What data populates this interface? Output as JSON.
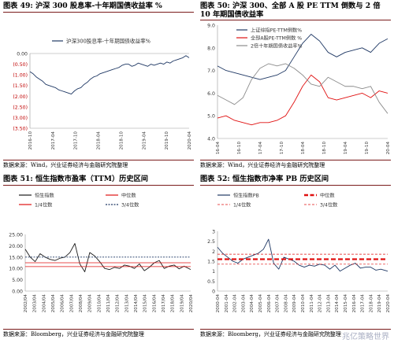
{
  "panels": [
    {
      "title": "图表 49:  沪深 300 股息率-十年期国债收益率  %",
      "source": "数据来源：Wind，兴业证券经济与金融研究院整理",
      "chart_data": {
        "type": "line",
        "title": "图表 49:  沪深 300 股息率-十年期国债收益率  %",
        "legend": "top-right",
        "ylim": [
          -3.5,
          0.0
        ],
        "yticks": [
          "0.00",
          "(0.50)",
          "(1.00)",
          "(1.50)",
          "(2.00)",
          "(2.50)",
          "(3.00)",
          "(3.50)"
        ],
        "xticks": [
          "2016-10",
          "2017-04",
          "2017-10",
          "2018-04",
          "2018-10",
          "2019-04",
          "2019-10",
          "2020-04"
        ],
        "series": [
          {
            "name": "沪深300股息率-十年期国债收益率%",
            "color": "#1f3864",
            "x": [
              0,
              0.02,
              0.04,
              0.06,
              0.08,
              0.1,
              0.12,
              0.14,
              0.16,
              0.18,
              0.2,
              0.22,
              0.24,
              0.26,
              0.28,
              0.3,
              0.32,
              0.34,
              0.36,
              0.38,
              0.4,
              0.42,
              0.44,
              0.46,
              0.48,
              0.5,
              0.52,
              0.54,
              0.56,
              0.58,
              0.6,
              0.62,
              0.64,
              0.66,
              0.68,
              0.7,
              0.72,
              0.74,
              0.76,
              0.78,
              0.8,
              0.82,
              0.84,
              0.86,
              0.88,
              0.9,
              0.92,
              0.94,
              0.96,
              0.98,
              1.0
            ],
            "values": [
              -0.85,
              -0.95,
              -1.1,
              -1.2,
              -1.3,
              -1.45,
              -1.5,
              -1.55,
              -1.6,
              -1.7,
              -1.75,
              -1.8,
              -1.85,
              -1.9,
              -1.75,
              -1.65,
              -1.6,
              -1.45,
              -1.35,
              -1.2,
              -1.1,
              -1.05,
              -0.95,
              -0.9,
              -0.85,
              -0.8,
              -0.75,
              -0.7,
              -0.65,
              -0.55,
              -0.5,
              -0.5,
              -0.6,
              -0.55,
              -0.45,
              -0.5,
              -0.55,
              -0.6,
              -0.5,
              -0.55,
              -0.5,
              -0.45,
              -0.5,
              -0.4,
              -0.45,
              -0.35,
              -0.3,
              -0.25,
              -0.2,
              -0.1,
              -0.2
            ]
          }
        ]
      }
    },
    {
      "title": "图表 50:  沪深 300、全部 A 股 PE TTM 倒数与 2 倍 10 年期国债收益率",
      "source": "数据来源：Wind，兴业证券经济与金融研究院整理",
      "chart_data": {
        "type": "line",
        "title": "图表 50:  沪深 300、全部 A 股 PE TTM 倒数与 2 倍 10 年期国债收益率",
        "legend": "top-left",
        "ylim": [
          4.0,
          9.0
        ],
        "yticks": [
          "9.0",
          "8.0",
          "7.0",
          "6.0",
          "5.0",
          "4.0"
        ],
        "xticks": [
          "2016-04",
          "2016-10",
          "2017-04",
          "2017-10",
          "2018-04",
          "2018-10",
          "2019-04",
          "2019-10",
          "2020-04"
        ],
        "series": [
          {
            "name": "上证综指PE-TTM倒数%",
            "color": "#1f3864",
            "x": [
              0,
              0.05,
              0.1,
              0.15,
              0.2,
              0.25,
              0.3,
              0.35,
              0.4,
              0.45,
              0.5,
              0.55,
              0.6,
              0.65,
              0.7,
              0.75,
              0.8,
              0.85,
              0.9,
              0.95,
              1.0
            ],
            "values": [
              7.2,
              7.0,
              6.9,
              6.8,
              6.7,
              6.6,
              6.7,
              6.8,
              7.0,
              7.6,
              8.2,
              8.6,
              8.3,
              7.8,
              7.6,
              7.8,
              7.9,
              8.0,
              7.8,
              8.2,
              8.4
            ]
          },
          {
            "name": "全部A股PE-TTM倒数 %",
            "color": "#e01010",
            "x": [
              0,
              0.05,
              0.1,
              0.15,
              0.2,
              0.25,
              0.3,
              0.35,
              0.4,
              0.45,
              0.5,
              0.55,
              0.6,
              0.65,
              0.7,
              0.75,
              0.8,
              0.85,
              0.9,
              0.95,
              1.0
            ],
            "values": [
              4.9,
              5.0,
              4.8,
              4.7,
              4.6,
              4.7,
              4.7,
              4.8,
              5.0,
              5.6,
              6.3,
              6.8,
              6.5,
              5.8,
              5.7,
              5.8,
              5.9,
              6.0,
              5.8,
              6.1,
              6.0
            ]
          },
          {
            "name": "2倍十年期国债收益率%",
            "color": "#8c8c8c",
            "x": [
              0,
              0.05,
              0.1,
              0.15,
              0.2,
              0.25,
              0.3,
              0.35,
              0.4,
              0.45,
              0.5,
              0.55,
              0.6,
              0.65,
              0.7,
              0.75,
              0.8,
              0.85,
              0.9,
              0.95,
              1.0
            ],
            "values": [
              5.9,
              5.7,
              5.5,
              5.8,
              6.6,
              7.1,
              7.3,
              7.2,
              7.3,
              7.1,
              6.8,
              6.4,
              6.3,
              6.7,
              6.5,
              6.3,
              6.3,
              6.2,
              6.3,
              5.6,
              5.1
            ]
          }
        ]
      }
    },
    {
      "title": "图表 51:  恒生指数市盈率（TTM）历史区间",
      "source": "数据来源：Bloomberg，兴业证券经济与金融研究院整理",
      "chart_data": {
        "type": "line",
        "title": "图表 51:  恒生指数市盈率（TTM）历史区间",
        "legend": "top",
        "ylim": [
          0.0,
          25.0
        ],
        "yticks": [
          "25.00",
          "20.00",
          "15.00",
          "10.00",
          "5.00",
          "0.00"
        ],
        "xticks": [
          "2002/04",
          "2003/04",
          "2004/04",
          "2005/04",
          "2006/04",
          "2007/04",
          "2008/04",
          "2009/04",
          "2010/04",
          "2011/04",
          "2012/04",
          "2013/04",
          "2014/04",
          "2015/04",
          "2016/04",
          "2017/04",
          "2018/04",
          "2019/04",
          "2020/04"
        ],
        "series": [
          {
            "name": "恒生指数",
            "color": "#1a1a1a",
            "x": [
              0,
              0.03,
              0.06,
              0.09,
              0.12,
              0.15,
              0.18,
              0.21,
              0.24,
              0.27,
              0.3,
              0.33,
              0.36,
              0.39,
              0.42,
              0.45,
              0.48,
              0.51,
              0.54,
              0.57,
              0.6,
              0.63,
              0.66,
              0.69,
              0.72,
              0.75,
              0.78,
              0.81,
              0.84,
              0.87,
              0.9,
              0.93,
              0.96,
              1.0
            ],
            "values": [
              18.5,
              15.0,
              13.0,
              16.5,
              15.0,
              14.0,
              13.5,
              14.5,
              15.0,
              17.0,
              21.0,
              12.0,
              8.5,
              17.0,
              15.5,
              13.0,
              10.0,
              9.5,
              10.5,
              10.0,
              11.5,
              11.0,
              10.0,
              12.0,
              9.0,
              10.5,
              12.5,
              13.5,
              10.0,
              11.0,
              11.5,
              9.8,
              11.0,
              9.5
            ]
          },
          {
            "name": "中位数",
            "color": "#e01010",
            "values": [
              12.5
            ]
          },
          {
            "name": "1/4位数",
            "color": "#e01010",
            "values": [
              10.8
            ]
          },
          {
            "name": "3/4位数",
            "color": "#1f3864",
            "values": [
              15.0
            ]
          }
        ]
      }
    },
    {
      "title": "图表 52:  恒生指数市净率 PB 历史区间",
      "source": "数据来源：Bloomberg，兴业证券经济与金融研究院整理",
      "chart_data": {
        "type": "line",
        "title": "图表 52:  恒生指数市净率 PB 历史区间",
        "legend": "top",
        "ylim": [
          0.0,
          3.0
        ],
        "yticks": [
          "3",
          "2.5",
          "2",
          "1.5",
          "1",
          "0.5",
          "0"
        ],
        "xticks": [
          "2000-04",
          "2001-04",
          "2002-04",
          "2003-04",
          "2004-04",
          "2005-04",
          "2006-04",
          "2007-04",
          "2008-04",
          "2009-04",
          "2010-04",
          "2011-04",
          "2012-04",
          "2013-04",
          "2014-04",
          "2015-04",
          "2016-04",
          "2017-04",
          "2018-04",
          "2019-04",
          "2020-04"
        ],
        "series": [
          {
            "name": "恒生指数PB",
            "color": "#1f3864",
            "x": [
              0,
              0.03,
              0.06,
              0.09,
              0.12,
              0.15,
              0.18,
              0.21,
              0.24,
              0.27,
              0.3,
              0.33,
              0.36,
              0.39,
              0.42,
              0.45,
              0.48,
              0.51,
              0.54,
              0.57,
              0.6,
              0.63,
              0.66,
              0.69,
              0.72,
              0.75,
              0.78,
              0.81,
              0.84,
              0.87,
              0.9,
              0.93,
              0.96,
              1.0
            ],
            "values": [
              2.2,
              1.9,
              1.7,
              1.5,
              1.4,
              1.6,
              1.7,
              1.8,
              1.9,
              2.1,
              2.6,
              1.4,
              1.1,
              1.7,
              1.6,
              1.5,
              1.3,
              1.2,
              1.3,
              1.25,
              1.35,
              1.3,
              1.1,
              1.3,
              1.0,
              1.15,
              1.3,
              1.4,
              1.15,
              1.2,
              1.2,
              1.05,
              1.1,
              1.0
            ]
          },
          {
            "name": "中位数",
            "color": "#e01010",
            "values": [
              1.6
            ]
          },
          {
            "name": "1/4位数",
            "color": "#e01010",
            "values": [
              1.35
            ]
          },
          {
            "name": "3/4位数",
            "color": "#e01010",
            "values": [
              1.85
            ]
          }
        ]
      }
    }
  ],
  "watermark": "兆亿策略世界"
}
